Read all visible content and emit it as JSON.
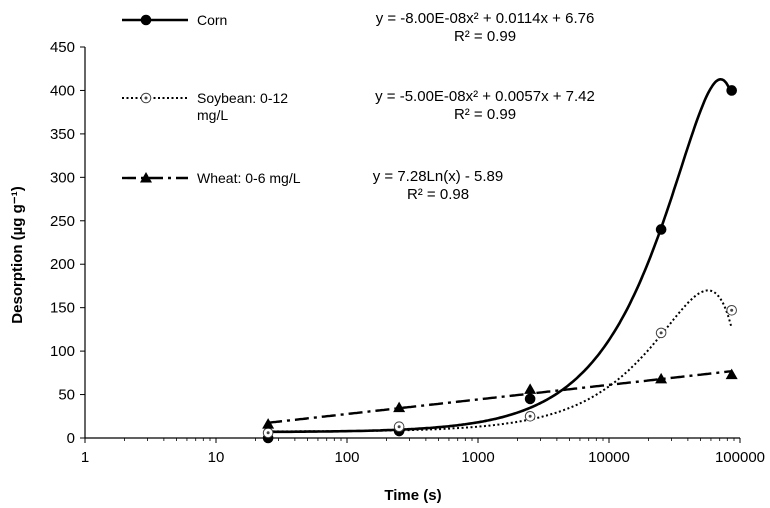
{
  "chart_data": {
    "type": "scatter",
    "x_scale": "log",
    "xlabel": "Time (s)",
    "ylabel": "Desorption (µg g⁻¹)",
    "xlim": [
      1,
      100000
    ],
    "ylim": [
      0,
      450
    ],
    "x_ticks": [
      "1",
      "10",
      "100",
      "1000",
      "10000",
      "100000"
    ],
    "y_ticks": [
      "0",
      "50",
      "100",
      "150",
      "200",
      "250",
      "300",
      "350",
      "400",
      "450"
    ],
    "grid": false,
    "legend_placement": "top-left",
    "series": [
      {
        "name": "Corn",
        "marker": "filled-circle",
        "line": "solid",
        "color": "#000000",
        "x": [
          25,
          250,
          2500,
          25000,
          86400
        ],
        "y": [
          0,
          8,
          45,
          240,
          400
        ],
        "fit": {
          "equation": "y = -8.00E-08x² + 0.0114x + 6.76",
          "r2": "R² = 0.99",
          "kind": "poly2",
          "a": -8e-08,
          "b": 0.0114,
          "c": 6.76
        }
      },
      {
        "name": "Soybean: 0-12 mg/L",
        "name_lines": [
          "Soybean: 0-12",
          "mg/L"
        ],
        "marker": "open-circle",
        "line": "dotted",
        "color": "#000000",
        "x": [
          25,
          250,
          2500,
          25000,
          86400
        ],
        "y": [
          6,
          13,
          25,
          121,
          147
        ],
        "fit": {
          "equation": "y = -5.00E-08x² + 0.0057x + 7.42",
          "r2": "R² = 0.99",
          "kind": "poly2",
          "a": -5e-08,
          "b": 0.0057,
          "c": 7.42
        }
      },
      {
        "name": "Wheat: 0-6 mg/L",
        "marker": "filled-triangle",
        "line": "dash-dot",
        "color": "#000000",
        "x": [
          25,
          250,
          2500,
          25000,
          86400
        ],
        "y": [
          16,
          35,
          56,
          68,
          73
        ],
        "fit": {
          "equation": "y = 7.28Ln(x) - 5.89",
          "r2": "R² = 0.98",
          "kind": "ln",
          "a": 7.28,
          "b": -5.89
        }
      }
    ]
  }
}
